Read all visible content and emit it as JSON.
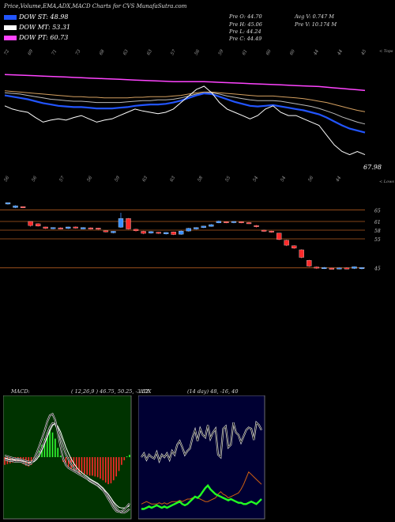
{
  "header": {
    "title": "Price,Volume,EMA,ADX,MACD Charts for CVS MunafaSutra.com"
  },
  "legend": [
    {
      "label": "DOW ST: 48.98",
      "color": "#2255ff"
    },
    {
      "label": "DOW MT: 53.31",
      "color": "#ffffff"
    },
    {
      "label": "DOW PT: 60.73",
      "color": "#ff44ff"
    }
  ],
  "stats": {
    "prev_open": "Pre   O: 44.70",
    "prev_high": "Pre   H: 45.06",
    "prev_low": "Pre   L: 44.24",
    "prev_close": "Pre   C: 44.49",
    "avg_vol": "Avg V: 0.747  M",
    "prev_vol": "Pre   V: 10.174  M"
  },
  "colors": {
    "price_line": "#ffffff",
    "ema_short": "#2255ff",
    "ema_mid": "#bbbbbb",
    "ema_long": "#d4a060",
    "ema_pt": "#ff44ff",
    "bull": "#3a8fff",
    "bear": "#ff2a2a",
    "macd_bg": "#003300",
    "adx_bg": "#000033"
  },
  "chart_data": [
    {
      "type": "line",
      "name": "price-ema-chart",
      "top_axis_labels": [
        "72",
        "69",
        "71",
        "73",
        "68",
        "63",
        "63",
        "57",
        "56",
        "59",
        "61",
        "60",
        "60",
        "44",
        "44",
        "45"
      ],
      "bottom_axis_labels": [
        "56",
        "56",
        "57",
        "56",
        "59",
        "63",
        "63",
        "58",
        "55",
        "54",
        "54",
        "56",
        "44"
      ],
      "right_labels": {
        "top": "< Tops",
        "bottom": "< Lows",
        "last_value": "67.98"
      },
      "series": [
        {
          "values": [
            69.0,
            68.5,
            68.2,
            68.0,
            67.2,
            66.5,
            66.8,
            67.0,
            66.8,
            67.2,
            67.5,
            67.0,
            66.5,
            66.8,
            67.0,
            67.5,
            68.0,
            68.5,
            68.2,
            68.0,
            67.8,
            68.0,
            68.5,
            69.5,
            70.5,
            71.5,
            72.0,
            71.0,
            69.5,
            68.5,
            68.0,
            67.5,
            67.0,
            67.5,
            68.5,
            69.0,
            68.0,
            67.5,
            67.5,
            67.0,
            66.5,
            66.0,
            64.5,
            63.0,
            62.0,
            61.5,
            62.0,
            61.5
          ]
        },
        {
          "values": [
            70.6,
            70.4,
            70.2,
            70.0,
            69.7,
            69.4,
            69.2,
            69.0,
            68.9,
            68.8,
            68.8,
            68.7,
            68.6,
            68.6,
            68.6,
            68.7,
            68.8,
            69.0,
            69.1,
            69.2,
            69.2,
            69.3,
            69.5,
            69.8,
            70.2,
            70.6,
            70.9,
            70.8,
            70.4,
            70.0,
            69.6,
            69.3,
            69.0,
            68.9,
            69.0,
            69.1,
            68.9,
            68.7,
            68.5,
            68.3,
            68.0,
            67.7,
            67.2,
            66.6,
            66.0,
            65.5,
            65.2,
            64.9
          ]
        },
        {
          "values": [
            71.0,
            70.9,
            70.8,
            70.6,
            70.4,
            70.2,
            70.0,
            69.9,
            69.8,
            69.7,
            69.7,
            69.6,
            69.5,
            69.5,
            69.5,
            69.5,
            69.6,
            69.7,
            69.8,
            69.8,
            69.9,
            69.9,
            70.0,
            70.2,
            70.5,
            70.8,
            71.0,
            71.0,
            70.8,
            70.5,
            70.3,
            70.1,
            69.9,
            69.8,
            69.8,
            69.8,
            69.7,
            69.5,
            69.3,
            69.1,
            68.9,
            68.6,
            68.2,
            67.8,
            67.3,
            66.9,
            66.5,
            66.2
          ]
        },
        {
          "values": [
            71.3,
            71.2,
            71.1,
            71.0,
            70.9,
            70.8,
            70.7,
            70.6,
            70.5,
            70.4,
            70.4,
            70.3,
            70.3,
            70.2,
            70.2,
            70.2,
            70.2,
            70.3,
            70.3,
            70.4,
            70.4,
            70.4,
            70.5,
            70.6,
            70.8,
            71.0,
            71.1,
            71.1,
            71.0,
            70.9,
            70.8,
            70.7,
            70.6,
            70.5,
            70.5,
            70.5,
            70.4,
            70.3,
            70.2,
            70.1,
            69.9,
            69.7,
            69.5,
            69.2,
            68.9,
            68.6,
            68.3,
            68.1
          ]
        },
        {
          "values": [
            73.8,
            73.75,
            73.7,
            73.65,
            73.6,
            73.55,
            73.5,
            73.45,
            73.4,
            73.35,
            73.3,
            73.25,
            73.2,
            73.15,
            73.1,
            73.05,
            73.0,
            72.95,
            72.9,
            72.85,
            72.8,
            72.75,
            72.7,
            72.7,
            72.7,
            72.7,
            72.7,
            72.65,
            72.6,
            72.55,
            72.5,
            72.45,
            72.4,
            72.35,
            72.3,
            72.25,
            72.2,
            72.15,
            72.1,
            72.05,
            72.0,
            71.95,
            71.85,
            71.75,
            71.65,
            71.55,
            71.45,
            71.35
          ]
        }
      ],
      "ylim": [
        60,
        76
      ]
    },
    {
      "type": "candlestick",
      "name": "price-candles-chart",
      "price_labels": [
        "65",
        "61",
        "58",
        "55",
        "45"
      ],
      "reference_lines": [
        65,
        61,
        58,
        55,
        45
      ],
      "ylim": [
        40,
        70
      ],
      "candles": [
        {
          "o": 67,
          "c": 67.5,
          "h": 67.5,
          "l": 66.8
        },
        {
          "o": 65.8,
          "c": 66.4,
          "h": 66.6,
          "l": 65.6
        },
        {
          "o": 66.1,
          "c": 65.7,
          "h": 66.2,
          "l": 65.6
        },
        {
          "o": 61.0,
          "c": 59.6,
          "h": 61.0,
          "l": 59.2
        },
        {
          "o": 60.2,
          "c": 59.4,
          "h": 60.4,
          "l": 59.2
        },
        {
          "o": 59.1,
          "c": 58.6,
          "h": 59.2,
          "l": 58.4
        },
        {
          "o": 58.5,
          "c": 58.9,
          "h": 59.0,
          "l": 58.3
        },
        {
          "o": 58.8,
          "c": 58.5,
          "h": 59.0,
          "l": 58.3
        },
        {
          "o": 58.6,
          "c": 59.1,
          "h": 59.2,
          "l": 58.4
        },
        {
          "o": 59.1,
          "c": 58.7,
          "h": 59.3,
          "l": 58.5
        },
        {
          "o": 58.4,
          "c": 58.9,
          "h": 59.0,
          "l": 58.3
        },
        {
          "o": 58.8,
          "c": 58.4,
          "h": 59.0,
          "l": 58.2
        },
        {
          "o": 58.7,
          "c": 58.3,
          "h": 58.8,
          "l": 58.1
        },
        {
          "o": 57.8,
          "c": 57.4,
          "h": 58.0,
          "l": 57.2
        },
        {
          "o": 57.1,
          "c": 57.6,
          "h": 57.7,
          "l": 56.9
        },
        {
          "o": 59.0,
          "c": 62.0,
          "h": 64.0,
          "l": 58.8
        },
        {
          "o": 62.0,
          "c": 58.4,
          "h": 62.2,
          "l": 58.2
        },
        {
          "o": 58.3,
          "c": 57.8,
          "h": 58.5,
          "l": 57.5
        },
        {
          "o": 57.6,
          "c": 56.9,
          "h": 57.8,
          "l": 56.6
        },
        {
          "o": 57.0,
          "c": 57.5,
          "h": 57.7,
          "l": 56.8
        },
        {
          "o": 57.3,
          "c": 56.9,
          "h": 57.4,
          "l": 56.7
        },
        {
          "o": 56.7,
          "c": 57.2,
          "h": 57.3,
          "l": 56.5
        },
        {
          "o": 57.4,
          "c": 56.5,
          "h": 57.5,
          "l": 56.3
        },
        {
          "o": 56.6,
          "c": 57.7,
          "h": 57.9,
          "l": 56.4
        },
        {
          "o": 57.7,
          "c": 58.6,
          "h": 58.8,
          "l": 57.5
        },
        {
          "o": 58.4,
          "c": 58.9,
          "h": 59.0,
          "l": 58.2
        },
        {
          "o": 58.9,
          "c": 59.4,
          "h": 59.5,
          "l": 58.7
        },
        {
          "o": 59.3,
          "c": 59.9,
          "h": 60.1,
          "l": 59.2
        },
        {
          "o": 60.5,
          "c": 61.1,
          "h": 61.3,
          "l": 60.4
        },
        {
          "o": 60.9,
          "c": 60.6,
          "h": 61.0,
          "l": 60.4
        },
        {
          "o": 60.6,
          "c": 61.0,
          "h": 61.1,
          "l": 60.4
        },
        {
          "o": 60.9,
          "c": 60.6,
          "h": 61.0,
          "l": 60.4
        },
        {
          "o": 60.6,
          "c": 60.3,
          "h": 60.8,
          "l": 60.1
        },
        {
          "o": 59.6,
          "c": 59.3,
          "h": 59.8,
          "l": 58.9
        },
        {
          "o": 58.0,
          "c": 57.6,
          "h": 58.2,
          "l": 57.4
        },
        {
          "o": 57.7,
          "c": 57.3,
          "h": 57.8,
          "l": 57.1
        },
        {
          "o": 57.0,
          "c": 54.8,
          "h": 57.1,
          "l": 54.5
        },
        {
          "o": 54.5,
          "c": 52.8,
          "h": 54.7,
          "l": 52.5
        },
        {
          "o": 52.6,
          "c": 51.8,
          "h": 52.8,
          "l": 51.5
        },
        {
          "o": 51.2,
          "c": 48.6,
          "h": 51.4,
          "l": 48.3
        },
        {
          "o": 47.6,
          "c": 45.6,
          "h": 47.8,
          "l": 45.3
        },
        {
          "o": 45.3,
          "c": 44.9,
          "h": 45.5,
          "l": 44.6
        },
        {
          "o": 44.8,
          "c": 45.1,
          "h": 45.3,
          "l": 44.6
        },
        {
          "o": 44.9,
          "c": 44.7,
          "h": 45.1,
          "l": 44.5
        },
        {
          "o": 44.7,
          "c": 45.0,
          "h": 45.1,
          "l": 44.5
        },
        {
          "o": 45.0,
          "c": 44.7,
          "h": 45.2,
          "l": 44.5
        },
        {
          "o": 44.8,
          "c": 45.4,
          "h": 45.5,
          "l": 44.6
        },
        {
          "o": 44.7,
          "c": 45.1,
          "h": 45.2,
          "l": 44.5
        }
      ]
    },
    {
      "type": "bar",
      "name": "macd-chart",
      "title": "MACD:",
      "params": "( 12,26,9 ) 46.75, 50.25, -3.52",
      "ylim": [
        -8,
        8
      ],
      "histogram": [
        -1.0,
        -0.9,
        -0.8,
        -0.7,
        -0.6,
        -0.6,
        -0.7,
        -0.9,
        -1.1,
        -1.2,
        -1.0,
        -0.5,
        0.0,
        0.8,
        1.6,
        2.4,
        3.2,
        3.6,
        3.2,
        2.4,
        1.2,
        0.2,
        -0.6,
        -1.0,
        -1.4,
        -1.6,
        -1.8,
        -1.9,
        -2.0,
        -2.1,
        -2.2,
        -2.3,
        -2.4,
        -2.4,
        -2.5,
        -2.6,
        -2.8,
        -3.0,
        -3.3,
        -3.5,
        -3.4,
        -3.0,
        -2.5,
        -1.8,
        -1.0,
        -0.4,
        0.1,
        0.3
      ],
      "macd": [
        -0.3,
        -0.4,
        -0.5,
        -0.5,
        -0.6,
        -0.6,
        -0.6,
        -0.7,
        -0.9,
        -1.0,
        -0.8,
        -0.3,
        0.5,
        1.4,
        2.4,
        3.4,
        4.6,
        5.4,
        5.6,
        4.8,
        3.2,
        1.4,
        -0.2,
        -1.0,
        -1.4,
        -1.6,
        -1.8,
        -2.0,
        -2.2,
        -2.4,
        -2.6,
        -2.8,
        -3.0,
        -3.2,
        -3.4,
        -3.6,
        -3.9,
        -4.3,
        -4.8,
        -5.4,
        -6.0,
        -6.6,
        -7.0,
        -7.1,
        -7.0,
        -6.8,
        -6.4,
        -6.0
      ],
      "signal": [
        -0.1,
        -0.2,
        -0.3,
        -0.3,
        -0.4,
        -0.4,
        -0.4,
        -0.5,
        -0.6,
        -0.7,
        -0.7,
        -0.6,
        -0.3,
        0.2,
        0.9,
        1.7,
        2.6,
        3.4,
        4.1,
        4.4,
        4.0,
        3.3,
        2.3,
        1.3,
        0.5,
        -0.2,
        -0.8,
        -1.3,
        -1.7,
        -2.0,
        -2.3,
        -2.5,
        -2.8,
        -3.0,
        -3.2,
        -3.4,
        -3.7,
        -4.0,
        -4.4,
        -4.8,
        -5.3,
        -5.8,
        -6.2,
        -6.5,
        -6.6,
        -6.6,
        -6.5,
        -6.3
      ],
      "signal2": [
        0.2,
        0.1,
        0.0,
        -0.1,
        -0.2,
        -0.2,
        -0.3,
        -0.4,
        -0.5,
        -0.6,
        -0.6,
        -0.5,
        -0.2,
        0.4,
        1.2,
        2.0,
        3.0,
        3.9,
        4.4,
        4.3,
        3.6,
        2.6,
        1.4,
        0.4,
        -0.3,
        -0.9,
        -1.4,
        -1.8,
        -2.1,
        -2.4,
        -2.6,
        -2.8,
        -3.1,
        -3.3,
        -3.5,
        -3.7,
        -4.0,
        -4.3,
        -4.6,
        -5.0,
        -5.5,
        -6.1,
        -6.6,
        -7.0,
        -7.2,
        -7.2,
        -7.0,
        -6.7
      ]
    },
    {
      "type": "line",
      "name": "adx-chart",
      "title": "ADX",
      "params": "(14  day) 48, -16,  40",
      "ylim": [
        0,
        100
      ],
      "series": [
        {
          "values": [
            50,
            53,
            48,
            52,
            50,
            49,
            54,
            47,
            52,
            50,
            53,
            48,
            55,
            52,
            60,
            63,
            58,
            52,
            55,
            57,
            66,
            72,
            63,
            73,
            68,
            66,
            76,
            65,
            70,
            73,
            52,
            50,
            73,
            75,
            58,
            60,
            78,
            70,
            68,
            62,
            67,
            72,
            74,
            73,
            64,
            78,
            76,
            72
          ]
        },
        {
          "values": [
            8,
            8,
            9,
            10,
            9,
            10,
            11,
            10,
            9,
            10,
            9,
            10,
            11,
            12,
            13,
            14,
            12,
            11,
            12,
            14,
            16,
            18,
            17,
            19,
            22,
            25,
            27,
            24,
            22,
            20,
            19,
            18,
            17,
            16,
            15,
            16,
            15,
            14,
            13,
            13,
            12,
            12,
            13,
            14,
            13,
            12,
            14,
            16
          ]
        },
        {
          "values": [
            12,
            13,
            14,
            13,
            12,
            12,
            12,
            13,
            12,
            13,
            12,
            13,
            14,
            14,
            14,
            15,
            14,
            15,
            16,
            16,
            17,
            18,
            17,
            16,
            15,
            14,
            14,
            15,
            16,
            17,
            20,
            22,
            20,
            19,
            17,
            18,
            19,
            20,
            21,
            24,
            28,
            33,
            38,
            36,
            34,
            32,
            30,
            28
          ]
        }
      ]
    }
  ]
}
